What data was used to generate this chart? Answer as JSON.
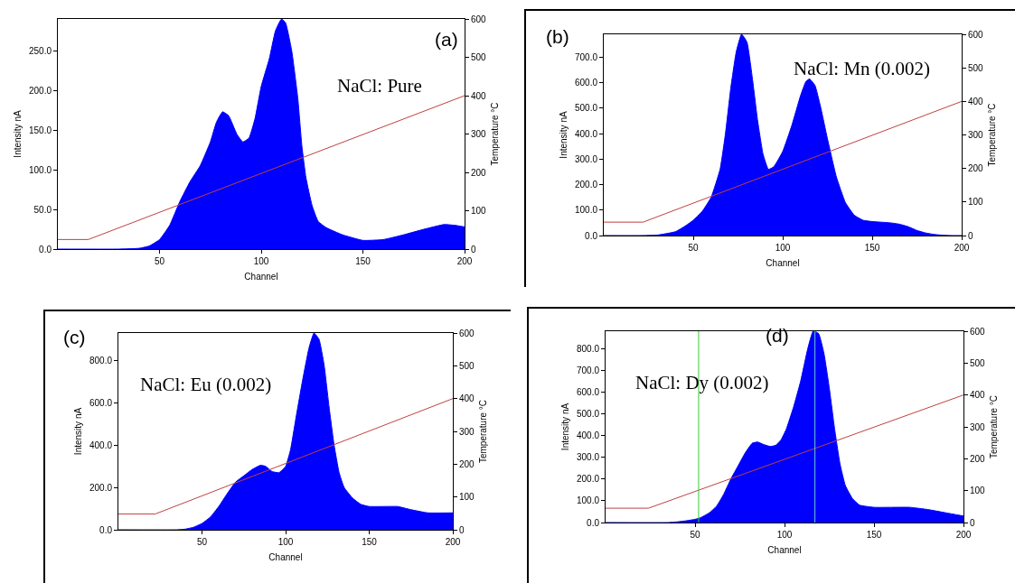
{
  "chart_data": [
    {
      "type": "area",
      "title": "(a)",
      "annotations": [
        "NaCl: Pure"
      ],
      "xlabel": "Channel",
      "ylabel": "Intensity nA",
      "y2label": "Temperature °C",
      "grid": false,
      "marker": "none",
      "line_style": "solid",
      "xlim": [
        0,
        200
      ],
      "xticks": [
        50,
        100,
        150,
        200
      ],
      "ylim": [
        0,
        290
      ],
      "yticks": [
        {
          "value": 0,
          "label": "0.0"
        },
        {
          "value": 50,
          "label": "50.0"
        },
        {
          "value": 100,
          "label": "100.0"
        },
        {
          "value": 150,
          "label": "150.0"
        },
        {
          "value": 200,
          "label": "200.0"
        },
        {
          "value": 250,
          "label": "250.0"
        }
      ],
      "y2lim": [
        0,
        600
      ],
      "y2ticks": [
        0,
        100,
        200,
        300,
        400,
        500,
        600
      ],
      "series": [
        {
          "color": "#0000ff",
          "x": [
            0,
            30,
            40,
            45,
            50,
            55,
            60,
            65,
            70,
            75,
            78,
            81,
            84,
            88,
            91,
            94,
            97,
            100,
            104,
            107,
            110,
            112,
            115,
            118,
            120,
            122,
            125,
            128,
            132,
            140,
            150,
            160,
            170,
            180,
            190,
            195,
            200
          ],
          "values": [
            0,
            0,
            1,
            4,
            12,
            30,
            60,
            85,
            105,
            135,
            160,
            173,
            168,
            145,
            135,
            140,
            165,
            205,
            240,
            275,
            290,
            285,
            250,
            190,
            130,
            90,
            55,
            35,
            27,
            18,
            11,
            12,
            18,
            25,
            31,
            30,
            28
          ]
        },
        {
          "type": "line",
          "axis": "y2",
          "color": "#c04040",
          "x": [
            0,
            15,
            200
          ],
          "values": [
            25,
            25,
            400
          ]
        }
      ]
    },
    {
      "type": "area",
      "title": "(b)",
      "annotations": [
        "NaCl: Mn (0.002)"
      ],
      "xlabel": "Channel",
      "ylabel": "Intensity nA",
      "y2label": "Temperature °C",
      "grid": false,
      "marker": "none",
      "line_style": "solid",
      "xlim": [
        0,
        200
      ],
      "xticks": [
        50,
        100,
        150,
        200
      ],
      "ylim": [
        0,
        790
      ],
      "yticks": [
        {
          "value": 0,
          "label": "0.0"
        },
        {
          "value": 100,
          "label": "100.0"
        },
        {
          "value": 200,
          "label": "200.0"
        },
        {
          "value": 300,
          "label": "300.0"
        },
        {
          "value": 400,
          "label": "400.0"
        },
        {
          "value": 500,
          "label": "500.0"
        },
        {
          "value": 600,
          "label": "600.0"
        },
        {
          "value": 700,
          "label": "700.0"
        }
      ],
      "y2lim": [
        0,
        600
      ],
      "y2ticks": [
        0,
        100,
        200,
        300,
        400,
        500,
        600
      ],
      "series": [
        {
          "color": "#0000ff",
          "x": [
            0,
            20,
            30,
            40,
            45,
            50,
            55,
            60,
            65,
            68,
            71,
            74,
            77,
            80,
            83,
            86,
            89,
            92,
            95,
            100,
            105,
            110,
            113,
            115,
            118,
            121,
            125,
            130,
            135,
            140,
            145,
            150,
            160,
            165,
            170,
            175,
            180,
            185,
            190,
            195,
            200
          ],
          "values": [
            0,
            0,
            2,
            15,
            35,
            60,
            95,
            150,
            260,
            400,
            580,
            720,
            790,
            760,
            620,
            450,
            320,
            260,
            270,
            330,
            430,
            550,
            605,
            615,
            590,
            510,
            380,
            230,
            130,
            80,
            60,
            55,
            50,
            45,
            35,
            20,
            10,
            4,
            1,
            0,
            0
          ]
        },
        {
          "type": "line",
          "axis": "y2",
          "color": "#c04040",
          "x": [
            0,
            22,
            200
          ],
          "values": [
            40,
            40,
            400
          ]
        }
      ]
    },
    {
      "type": "area",
      "title": "(c)",
      "annotations": [
        "NaCl: Eu (0.002)"
      ],
      "xlabel": "Channel",
      "ylabel": "Intensity nA",
      "y2label": "Temperature °C",
      "grid": false,
      "marker": "none",
      "line_style": "solid",
      "xlim": [
        0,
        200
      ],
      "xticks": [
        50,
        100,
        150,
        200
      ],
      "ylim": [
        0,
        930
      ],
      "yticks": [
        {
          "value": 0,
          "label": "0.0"
        },
        {
          "value": 200,
          "label": "200.0"
        },
        {
          "value": 400,
          "label": "400.0"
        },
        {
          "value": 600,
          "label": "600.0"
        },
        {
          "value": 800,
          "label": "800.0"
        }
      ],
      "y2lim": [
        0,
        600
      ],
      "y2ticks": [
        0,
        100,
        200,
        300,
        400,
        500,
        600
      ],
      "series": [
        {
          "color": "#0000ff",
          "x": [
            0,
            35,
            40,
            45,
            50,
            55,
            60,
            65,
            70,
            75,
            80,
            85,
            88,
            92,
            96,
            100,
            103,
            106,
            110,
            114,
            117,
            120,
            123,
            126,
            129,
            132,
            135,
            140,
            145,
            150,
            160,
            167,
            175,
            185,
            200
          ],
          "values": [
            0,
            0,
            3,
            12,
            30,
            60,
            110,
            170,
            225,
            255,
            285,
            305,
            300,
            275,
            270,
            300,
            380,
            520,
            700,
            860,
            930,
            900,
            780,
            580,
            400,
            270,
            200,
            150,
            120,
            110,
            110,
            110,
            95,
            80,
            80
          ]
        },
        {
          "type": "line",
          "axis": "y2",
          "color": "#c04040",
          "x": [
            0,
            22,
            200
          ],
          "values": [
            48,
            48,
            400
          ]
        }
      ]
    },
    {
      "type": "area",
      "title": "(d)",
      "annotations": [
        "NaCl: Dy (0.002)"
      ],
      "xlabel": "Channel",
      "ylabel": "Intensity nA",
      "y2label": "Temperature °C",
      "grid": false,
      "marker": "none",
      "line_style": "solid",
      "xlim": [
        0,
        200
      ],
      "xticks": [
        50,
        100,
        150,
        200
      ],
      "ylim": [
        0,
        880
      ],
      "yticks": [
        {
          "value": 0,
          "label": "0.0"
        },
        {
          "value": 100,
          "label": "100.0"
        },
        {
          "value": 200,
          "label": "200.0"
        },
        {
          "value": 300,
          "label": "300.0"
        },
        {
          "value": 400,
          "label": "400.0"
        },
        {
          "value": 500,
          "label": "500.0"
        },
        {
          "value": 600,
          "label": "600.0"
        },
        {
          "value": 700,
          "label": "700.0"
        },
        {
          "value": 800,
          "label": "800.0"
        }
      ],
      "y2lim": [
        0,
        600
      ],
      "y2ticks": [
        0,
        100,
        200,
        300,
        400,
        500,
        600
      ],
      "ref_lines": [
        {
          "axis": "x",
          "value": 52,
          "color": "#33cc33"
        },
        {
          "axis": "x",
          "value": 117,
          "color": "#66cccc"
        }
      ],
      "series": [
        {
          "color": "#0000ff",
          "x": [
            0,
            35,
            40,
            45,
            50,
            53,
            58,
            62,
            66,
            70,
            74,
            78,
            82,
            85,
            88,
            92,
            95,
            98,
            101,
            105,
            109,
            113,
            116,
            119,
            122,
            125,
            128,
            131,
            134,
            138,
            142,
            150,
            160,
            170,
            180,
            190,
            200
          ],
          "values": [
            0,
            0,
            3,
            8,
            15,
            22,
            45,
            75,
            130,
            200,
            260,
            320,
            365,
            370,
            360,
            350,
            355,
            380,
            430,
            530,
            650,
            800,
            880,
            870,
            780,
            620,
            430,
            270,
            170,
            110,
            80,
            70,
            70,
            70,
            60,
            45,
            30
          ]
        },
        {
          "type": "line",
          "axis": "y2",
          "color": "#c04040",
          "x": [
            0,
            24,
            200
          ],
          "values": [
            45,
            45,
            400
          ]
        }
      ]
    }
  ]
}
